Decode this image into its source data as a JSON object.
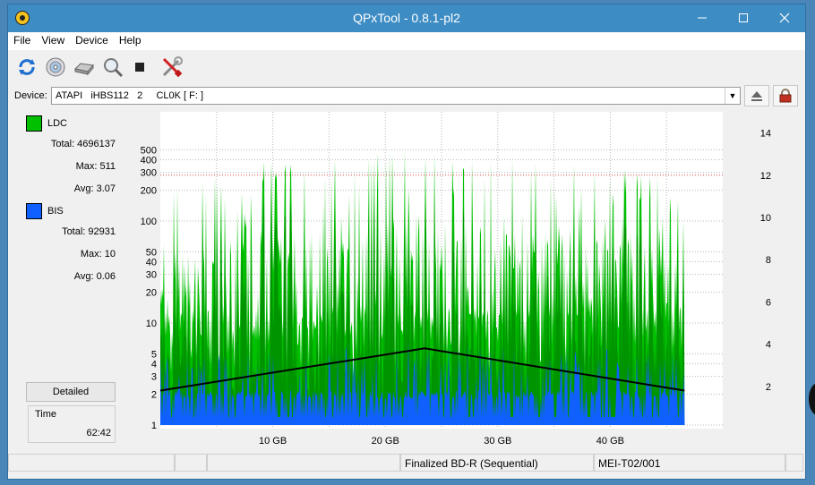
{
  "window": {
    "title": "QPxTool - 0.8.1-pl2"
  },
  "menu": [
    "File",
    "View",
    "Device",
    "Help"
  ],
  "device": {
    "label": "Device:",
    "value": "ATAPI   iHBS112   2     CL0K [ F: ]"
  },
  "ldc": {
    "name": "LDC",
    "color": "#00c000",
    "total": "Total: 4696137",
    "max": "Max: 511",
    "avg": "Avg: 3.07"
  },
  "bis": {
    "name": "BIS",
    "color": "#1060ff",
    "total": "Total: 92931",
    "max": "Max: 10",
    "avg": "Avg: 0.06"
  },
  "detailed_label": "Detailed",
  "time": {
    "label": "Time",
    "value": "62:42"
  },
  "status": {
    "disc": "Finalized BD-R (Sequential)",
    "media": "MEI-T02/001"
  },
  "chart_data": {
    "type": "area",
    "x_unit": "GB",
    "x_range": [
      0,
      50
    ],
    "x_ticks": [
      {
        "v": 10,
        "label": "10 GB"
      },
      {
        "v": 20,
        "label": "20 GB"
      },
      {
        "v": 30,
        "label": "30 GB"
      },
      {
        "v": 40,
        "label": "40 GB"
      }
    ],
    "y_left_scale": "log",
    "y_left_range": [
      1,
      1000
    ],
    "y_left_ticks": [
      "1",
      "2",
      "3",
      "4",
      "5",
      "10",
      "20",
      "30",
      "40",
      "50",
      "100",
      "200",
      "300",
      "400",
      "500"
    ],
    "y_right_range": [
      0,
      15
    ],
    "y_right_ticks": [
      "2",
      "4",
      "6",
      "8",
      "10",
      "12",
      "14"
    ],
    "data_end_gb": 46.6,
    "series": [
      {
        "name": "LDC",
        "color": "#00c000",
        "peak_max": 511
      },
      {
        "name": "BIS",
        "color": "#1060ff",
        "peak_max": 10
      },
      {
        "color": "#000000",
        "x": [
          0,
          23.5,
          46.6
        ],
        "y": [
          1.8,
          3.8,
          1.8
        ]
      }
    ],
    "grid": true,
    "background": "#ffffff"
  }
}
